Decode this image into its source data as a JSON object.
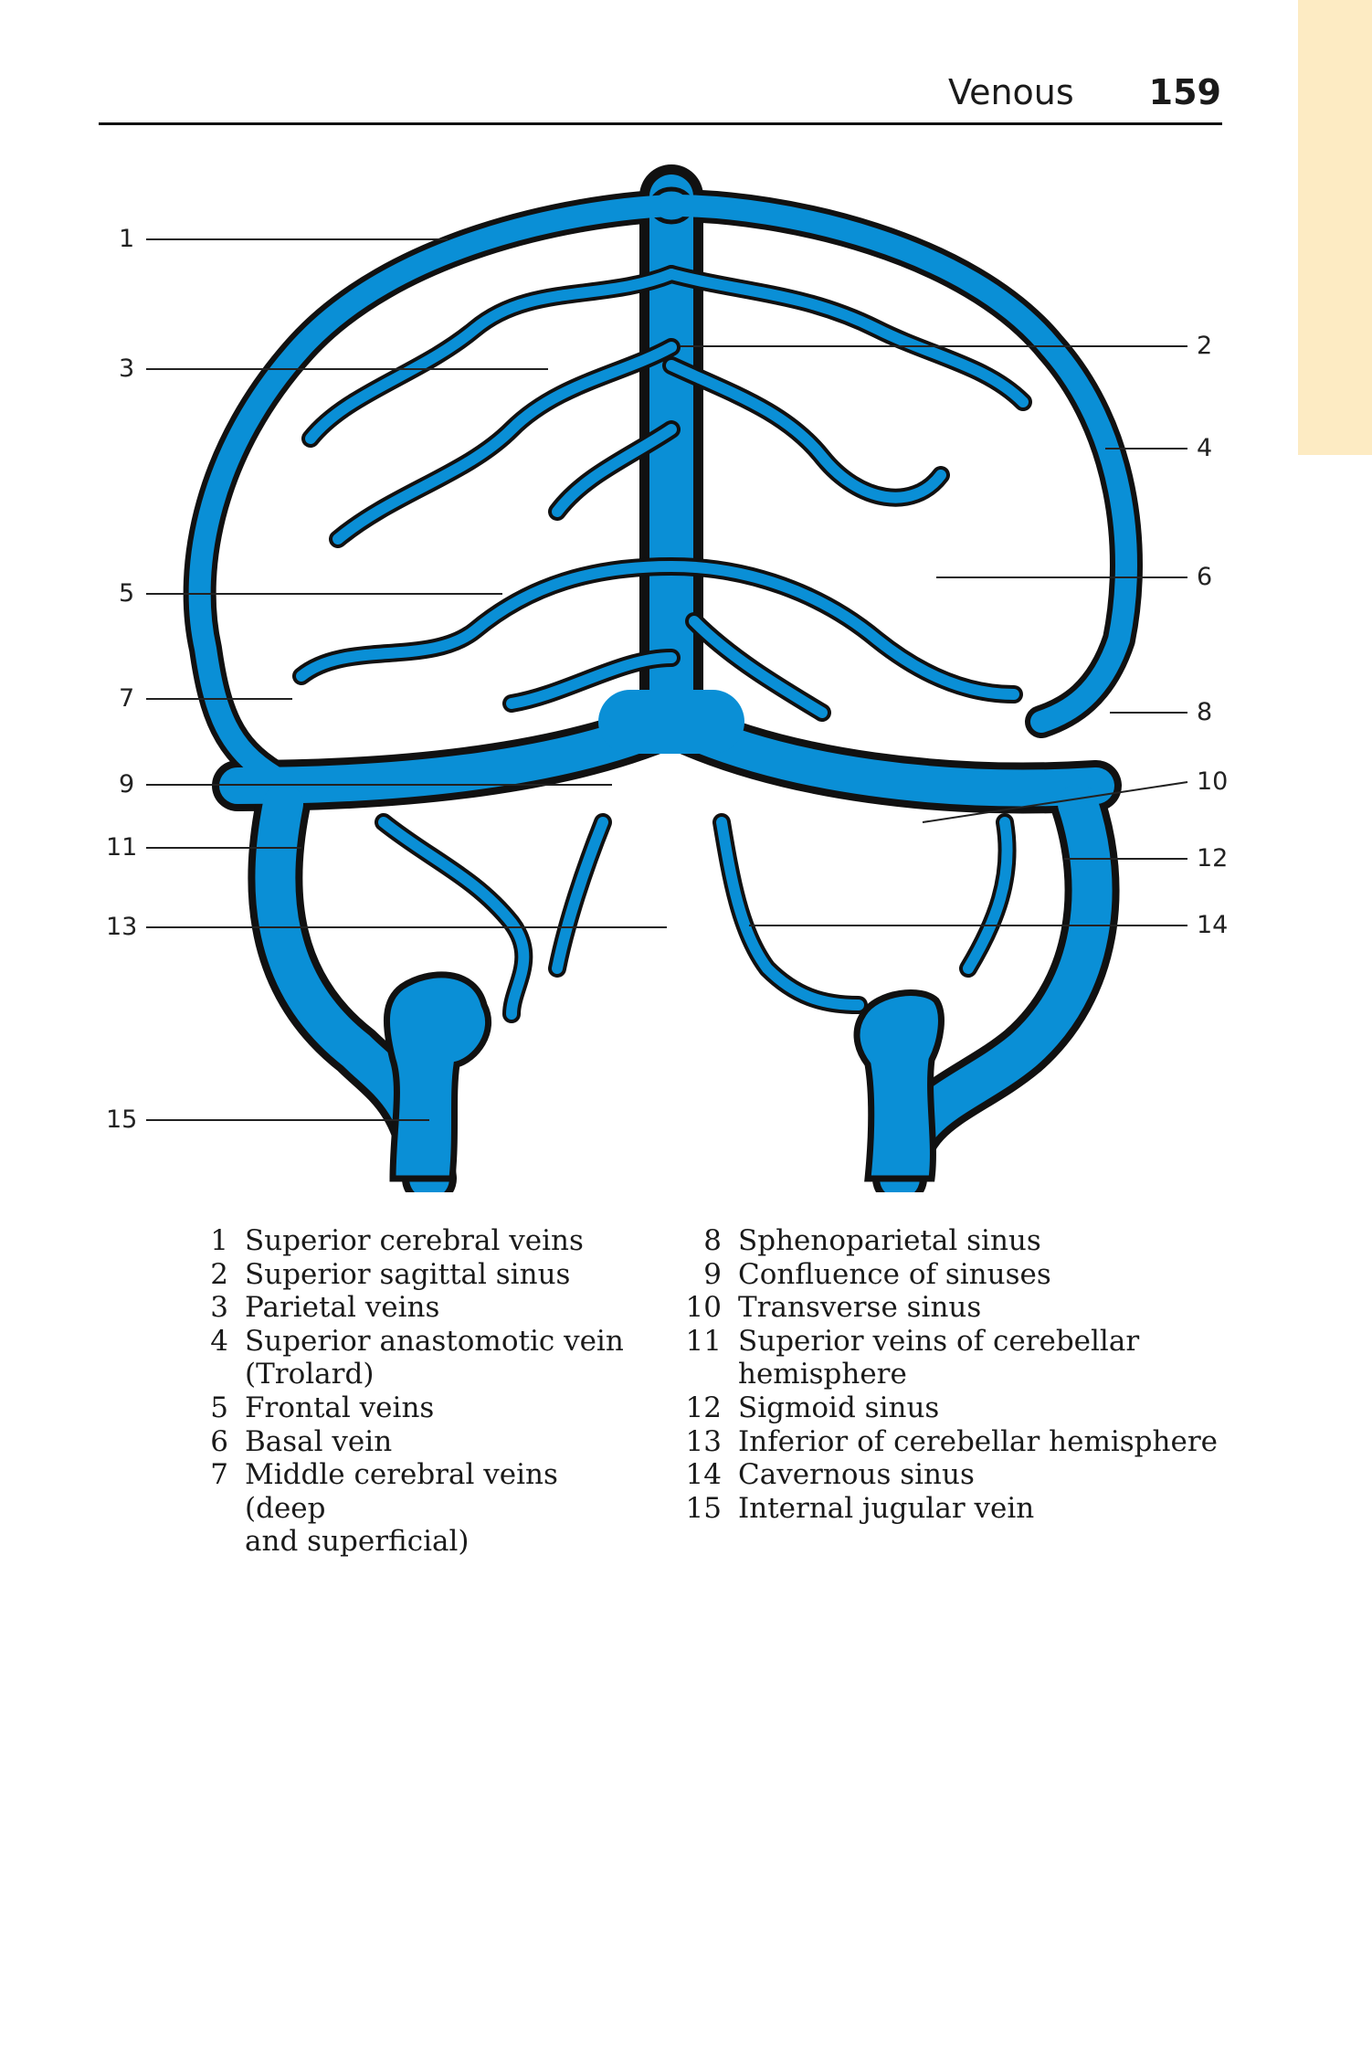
{
  "header": {
    "section": "Venous",
    "page_number": "159"
  },
  "figure": {
    "vein_color": "#0a8fd6",
    "outline_color": "#111111",
    "callouts": [
      "1",
      "3",
      "5",
      "7",
      "9",
      "11",
      "13",
      "15",
      "2",
      "4",
      "6",
      "8",
      "10",
      "12",
      "14"
    ]
  },
  "legend": {
    "left": [
      {
        "num": "1",
        "text": "Superior cerebral veins"
      },
      {
        "num": "2",
        "text": "Superior sagittal sinus"
      },
      {
        "num": "3",
        "text": "Parietal veins"
      },
      {
        "num": "4",
        "text": "Superior anastomotic vein"
      },
      {
        "num": "",
        "text": "(Trolard)"
      },
      {
        "num": "5",
        "text": "Frontal veins"
      },
      {
        "num": "6",
        "text": "Basal vein"
      },
      {
        "num": "7",
        "text": "Middle cerebral veins (deep"
      },
      {
        "num": "",
        "text": "and superficial)"
      }
    ],
    "right": [
      {
        "num": "8",
        "text": "Sphenoparietal sinus"
      },
      {
        "num": "9",
        "text": "Confluence of sinuses"
      },
      {
        "num": "10",
        "text": "Transverse sinus"
      },
      {
        "num": "11",
        "text": "Superior veins of cerebellar"
      },
      {
        "num": "",
        "text": "hemisphere"
      },
      {
        "num": "12",
        "text": "Sigmoid sinus"
      },
      {
        "num": "13",
        "text": "Inferior of cerebellar hemisphere"
      },
      {
        "num": "14",
        "text": "Cavernous sinus"
      },
      {
        "num": "15",
        "text": "Internal jugular vein"
      }
    ]
  }
}
